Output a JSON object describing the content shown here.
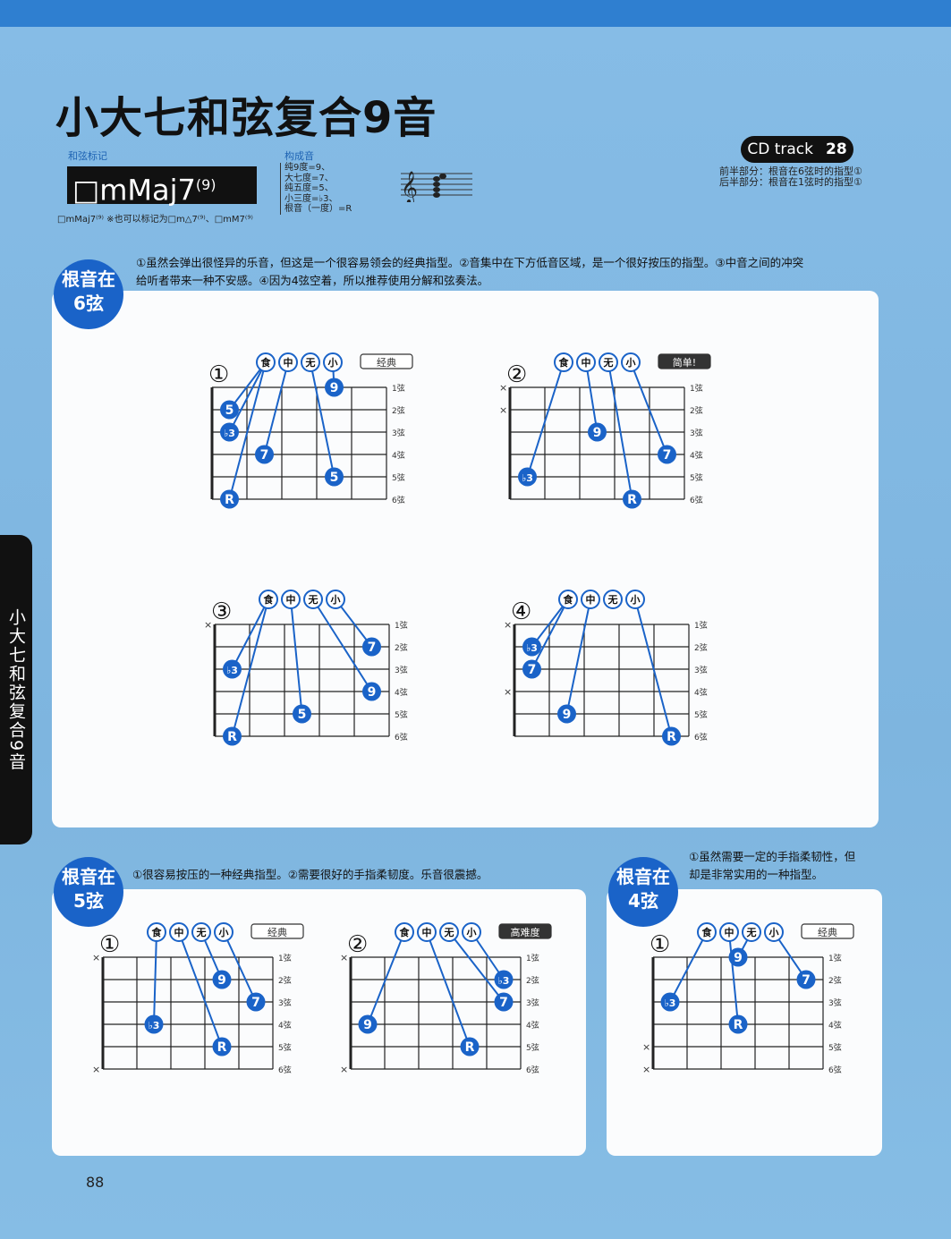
{
  "page": {
    "title": "小大七和弦复合9音",
    "chord_label_heading": "和弦标记",
    "chord_name": "□mMaj7",
    "chord_superscript": "(9)",
    "alt_notation": "□mMaj7⁽⁹⁾ ※也可以标记为□m△7⁽⁹⁾、□mM7⁽⁹⁾",
    "composition_heading": "构成音",
    "composition": [
      "纯9度=9、",
      "大七度=7、",
      "纯五度=5、",
      "小三度=♭3、",
      "根音（一度）=R"
    ],
    "cd_label": "CD track",
    "cd_number": "28",
    "cd_notes": [
      "前半部分：根音在6弦时的指型①",
      "后半部分：根音在1弦时的指型①"
    ],
    "side_tab": "小大七和弦复合9音",
    "page_number": "88",
    "colors": {
      "accent_blue": "#1a63c8",
      "background": "#7fb6e0",
      "panel": "#fbfcfd"
    }
  },
  "sections": [
    {
      "badge": [
        "根音在",
        "6弦"
      ],
      "description": [
        "①虽然会弹出很怪异的乐音，但这是一个很容易领会的经典指型。②音集中在下方低音区域，是一个很好按压的指型。③中音之间的冲突",
        "给听者带来一种不安感。④因为4弦空着，所以推荐使用分解和弦奏法。"
      ]
    },
    {
      "badge": [
        "根音在",
        "5弦"
      ],
      "description": [
        "①很容易按压的一种经典指型。②需要很好的手指柔韧度。乐音很震撼。"
      ]
    },
    {
      "badge": [
        "根音在",
        "4弦"
      ],
      "description": [
        "①虽然需要一定的手指柔韧性，但",
        "却是非常实用的一种指型。"
      ]
    }
  ],
  "finger_names": [
    "食",
    "中",
    "无",
    "小"
  ],
  "string_labels": [
    "1弦",
    "2弦",
    "3弦",
    "4弦",
    "5弦",
    "6弦"
  ],
  "diagrams": [
    {
      "id": "d6-1",
      "number": "①",
      "tag": "经典",
      "tag_dark": false,
      "frets": 5,
      "muted": [],
      "dots": [
        {
          "s": 6,
          "f": 1,
          "l": "R",
          "finger": 0
        },
        {
          "s": 2,
          "f": 1,
          "l": "5",
          "finger": 0
        },
        {
          "s": 3,
          "f": 1,
          "l": "♭3",
          "finger": 0
        },
        {
          "s": 4,
          "f": 2,
          "l": "7",
          "finger": 1
        },
        {
          "s": 5,
          "f": 4,
          "l": "5",
          "finger": 2
        },
        {
          "s": 1,
          "f": 4,
          "l": "9",
          "finger": 3
        }
      ]
    },
    {
      "id": "d6-2",
      "number": "②",
      "tag": "简单!",
      "tag_dark": true,
      "frets": 5,
      "muted": [
        1,
        2
      ],
      "dots": [
        {
          "s": 5,
          "f": 1,
          "l": "♭3",
          "finger": 0
        },
        {
          "s": 3,
          "f": 3,
          "l": "9",
          "finger": 1
        },
        {
          "s": 6,
          "f": 4,
          "l": "R",
          "finger": 2
        },
        {
          "s": 4,
          "f": 5,
          "l": "7",
          "finger": 3
        }
      ]
    },
    {
      "id": "d6-3",
      "number": "③",
      "tag": "",
      "tag_dark": false,
      "frets": 5,
      "muted": [
        1
      ],
      "dots": [
        {
          "s": 6,
          "f": 1,
          "l": "R",
          "finger": 0
        },
        {
          "s": 3,
          "f": 1,
          "l": "♭3",
          "finger": 0
        },
        {
          "s": 5,
          "f": 3,
          "l": "5",
          "finger": 1
        },
        {
          "s": 4,
          "f": 5,
          "l": "9",
          "finger": 2
        },
        {
          "s": 2,
          "f": 5,
          "l": "7",
          "finger": 3
        }
      ]
    },
    {
      "id": "d6-4",
      "number": "④",
      "tag": "",
      "tag_dark": false,
      "frets": 5,
      "muted": [
        1,
        4
      ],
      "dots": [
        {
          "s": 2,
          "f": 1,
          "l": "♭3",
          "finger": 0
        },
        {
          "s": 3,
          "f": 1,
          "l": "7",
          "finger": 0
        },
        {
          "s": 5,
          "f": 2,
          "l": "9",
          "finger": 1
        },
        {
          "s": 6,
          "f": 5,
          "l": "R",
          "finger": 3
        }
      ]
    },
    {
      "id": "d5-1",
      "number": "①",
      "tag": "经典",
      "tag_dark": false,
      "frets": 5,
      "muted": [
        1,
        6
      ],
      "dots": [
        {
          "s": 4,
          "f": 2,
          "l": "♭3",
          "finger": 0
        },
        {
          "s": 5,
          "f": 4,
          "l": "R",
          "finger": 1
        },
        {
          "s": 2,
          "f": 4,
          "l": "9",
          "finger": 2
        },
        {
          "s": 3,
          "f": 5,
          "l": "7",
          "finger": 3
        }
      ]
    },
    {
      "id": "d5-2",
      "number": "②",
      "tag": "高难度",
      "tag_dark": true,
      "frets": 5,
      "muted": [
        1,
        6
      ],
      "dots": [
        {
          "s": 4,
          "f": 1,
          "l": "9",
          "finger": 0
        },
        {
          "s": 5,
          "f": 4,
          "l": "R",
          "finger": 1
        },
        {
          "s": 3,
          "f": 5,
          "l": "7",
          "finger": 2
        },
        {
          "s": 2,
          "f": 5,
          "l": "♭3",
          "finger": 3
        }
      ]
    },
    {
      "id": "d4-1",
      "number": "①",
      "tag": "经典",
      "tag_dark": false,
      "frets": 5,
      "muted": [
        5,
        6
      ],
      "dots": [
        {
          "s": 3,
          "f": 1,
          "l": "♭3",
          "finger": 0
        },
        {
          "s": 4,
          "f": 3,
          "l": "R",
          "finger": 1
        },
        {
          "s": 1,
          "f": 3,
          "l": "9",
          "finger": 2
        },
        {
          "s": 2,
          "f": 5,
          "l": "7",
          "finger": 3
        }
      ]
    }
  ]
}
